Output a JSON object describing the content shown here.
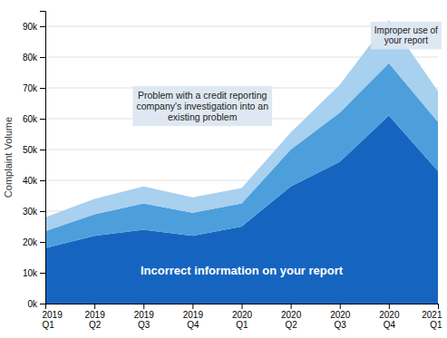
{
  "chart_data": {
    "type": "area",
    "stacked": true,
    "grid": true,
    "y_label": "Complaint Volume",
    "categories": [
      "2019\nQ1",
      "2019\nQ2",
      "2019\nQ3",
      "2019\nQ4",
      "2020\nQ1",
      "2020\nQ2",
      "2020\nQ3",
      "2020\nQ4",
      "2021\nQ1"
    ],
    "series": [
      {
        "name": "Incorrect information on your report",
        "color": "#1565c0",
        "values": [
          18000,
          22000,
          24000,
          22000,
          25000,
          38000,
          46000,
          61000,
          43000
        ]
      },
      {
        "name": "Problem with a credit reporting\ncompany's investigation into an\nexisting problem",
        "color": "#4d9fdb",
        "values": [
          5500,
          7000,
          8500,
          7500,
          7500,
          12000,
          16000,
          17000,
          16000
        ]
      },
      {
        "name": "Improper use of\nyour report",
        "color": "#a8d0ef",
        "values": [
          4500,
          5000,
          5500,
          5000,
          5000,
          5500,
          9000,
          14000,
          10000
        ]
      }
    ],
    "ylim": [
      0,
      95000
    ],
    "yticks": [
      {
        "value": 0,
        "label": "0k"
      },
      {
        "value": 10000,
        "label": "10k"
      },
      {
        "value": 20000,
        "label": "20k"
      },
      {
        "value": 30000,
        "label": "30k"
      },
      {
        "value": 40000,
        "label": "40k"
      },
      {
        "value": 50000,
        "label": "50k"
      },
      {
        "value": 60000,
        "label": "60k"
      },
      {
        "value": 70000,
        "label": "70k"
      },
      {
        "value": 80000,
        "label": "80k"
      },
      {
        "value": 90000,
        "label": "90k"
      }
    ]
  }
}
